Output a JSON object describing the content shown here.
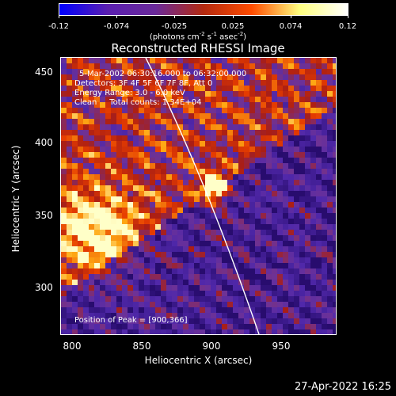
{
  "colorbar": {
    "ticks": [
      "-0.12",
      "-0.074",
      "-0.025",
      "0.025",
      "0.074",
      "0.12"
    ],
    "units": "photons cm-2 s-1 asec-2",
    "colors": [
      "#0000ff",
      "#5a1fb0",
      "#6a2a9a",
      "#b42a10",
      "#ff4c00",
      "#ffff80",
      "#ffffff"
    ]
  },
  "title": "Reconstructed RHESSI Image",
  "info": {
    "time": "5-Mar-2002 06:30:16.000 to 06:32:00.000",
    "detectors": "Detectors: 3F 4F 5F 6F 7F 8F, Att 0",
    "energy": "Energy Range: 3.0 - 6.0 keV",
    "clean": "Clean     Total counts: 1.34E+04",
    "peak": "Position of Peak = [900,366]"
  },
  "axes": {
    "xlabel": "Heliocentric X (arcsec)",
    "ylabel": "Heliocentric Y (arcsec)",
    "xticks": [
      "800",
      "850",
      "900",
      "950"
    ],
    "yticks": [
      "450",
      "400",
      "350",
      "300"
    ],
    "xlim": [
      792,
      992
    ],
    "ylim": [
      260,
      460
    ]
  },
  "footer": {
    "timestamp": "27-Apr-2022 16:25"
  }
}
